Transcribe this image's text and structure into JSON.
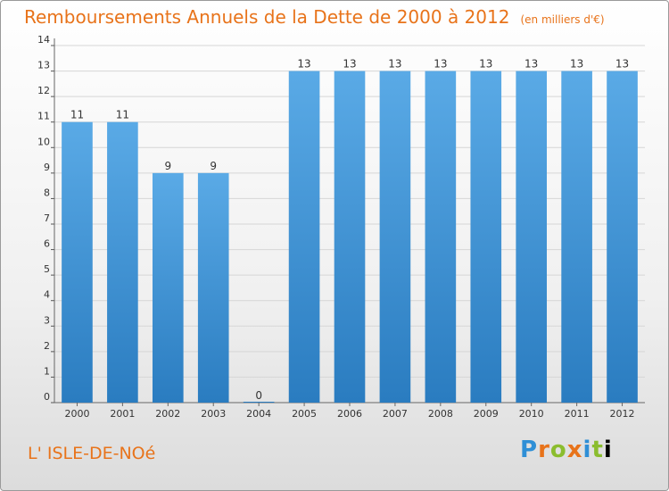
{
  "header": {
    "title": "Remboursements Annuels de la Dette de 2000 à 2012",
    "subtitle": "(en milliers d'€)"
  },
  "footer": {
    "town": "L' ISLE-DE-NOé",
    "brand": "Proxiti"
  },
  "colors": {
    "bar_top": "#5aaae6",
    "bar_bottom": "#2a7cc0",
    "title": "#e8731a"
  },
  "chart_data": {
    "type": "bar",
    "title": "Remboursements Annuels de la Dette de 2000 à 2012",
    "xlabel": "",
    "ylabel": "",
    "categories": [
      "2000",
      "2001",
      "2002",
      "2003",
      "2004",
      "2005",
      "2006",
      "2007",
      "2008",
      "2009",
      "2010",
      "2011",
      "2012"
    ],
    "values": [
      11,
      11,
      9,
      9,
      0,
      13,
      13,
      13,
      13,
      13,
      13,
      13,
      13
    ],
    "data_labels": [
      "11",
      "11",
      "9",
      "9",
      "0",
      "13",
      "13",
      "13",
      "13",
      "13",
      "13",
      "13",
      "13"
    ],
    "ylim": [
      0,
      14
    ],
    "yticks": [
      0,
      1,
      2,
      3,
      4,
      5,
      6,
      7,
      8,
      9,
      10,
      11,
      12,
      13,
      14
    ],
    "ytick_labels": [
      "0",
      "1",
      "2",
      "3",
      "4",
      "5",
      "6",
      "7",
      "8",
      "9",
      "10",
      "11",
      "12",
      "13",
      "14"
    ],
    "grid": true
  }
}
